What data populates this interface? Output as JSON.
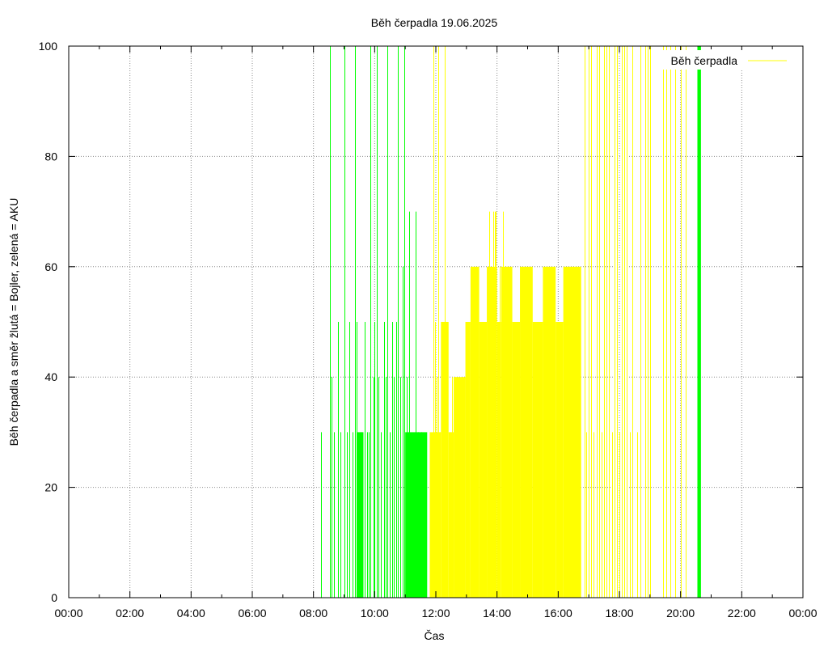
{
  "chart_data": {
    "type": "bar",
    "title": "Běh čerpadla 19.06.2025",
    "xlabel": "Čas",
    "ylabel": "Běh čerpadla a směr žlutá = Bojler, zelená = AKU",
    "ylim": [
      0,
      100
    ],
    "xlim": [
      "00:00",
      "24:00"
    ],
    "x_ticks": [
      "00:00",
      "02:00",
      "04:00",
      "06:00",
      "08:00",
      "10:00",
      "12:00",
      "14:00",
      "16:00",
      "18:00",
      "20:00",
      "22:00",
      "00:00"
    ],
    "y_ticks": [
      0,
      20,
      40,
      60,
      80,
      100
    ],
    "grid": true,
    "legend": {
      "position": "top-right",
      "entries": [
        {
          "label": "Běh čerpadla",
          "color": "#ffff00"
        }
      ]
    },
    "colors": {
      "aku": "#00ff00",
      "bojler": "#ffff00"
    },
    "series": [
      {
        "direction": "AKU",
        "color": "#00ff00",
        "spikes": [
          [
            "08:15",
            30
          ],
          [
            "08:32",
            100
          ],
          [
            "08:35",
            40
          ],
          [
            "08:40",
            30
          ],
          [
            "08:48",
            50
          ],
          [
            "08:53",
            30
          ],
          [
            "09:00",
            100
          ],
          [
            "09:05",
            30
          ],
          [
            "09:10",
            50
          ],
          [
            "09:17",
            30
          ],
          [
            "09:22",
            100
          ],
          [
            "09:25",
            50
          ],
          [
            "09:32",
            30
          ],
          [
            "09:40",
            50
          ],
          [
            "09:45",
            30
          ],
          [
            "09:48",
            30
          ],
          [
            "09:52",
            100
          ],
          [
            "09:58",
            40
          ],
          [
            "10:00",
            50
          ],
          [
            "10:05",
            100
          ],
          [
            "10:08",
            40
          ],
          [
            "10:12",
            30
          ],
          [
            "10:18",
            50
          ],
          [
            "10:22",
            40
          ],
          [
            "10:25",
            100
          ],
          [
            "10:30",
            30
          ],
          [
            "10:35",
            50
          ],
          [
            "10:38",
            40
          ],
          [
            "10:42",
            50
          ],
          [
            "10:46",
            100
          ],
          [
            "10:50",
            40
          ],
          [
            "10:55",
            60
          ],
          [
            "10:58",
            100
          ],
          [
            "11:03",
            40
          ],
          [
            "11:08",
            70
          ],
          [
            "11:20",
            70
          ],
          [
            "11:25",
            30
          ],
          [
            "11:32",
            30
          ]
        ],
        "blocks": [
          [
            "09:25",
            "09:38",
            30
          ],
          [
            "11:00",
            "11:43",
            30
          ],
          [
            "20:33",
            "20:40",
            100
          ]
        ]
      },
      {
        "direction": "Bojler",
        "color": "#ffff00",
        "spikes": [
          [
            "11:55",
            100
          ],
          [
            "11:58",
            50
          ],
          [
            "12:02",
            40
          ],
          [
            "12:05",
            100
          ],
          [
            "12:08",
            30
          ],
          [
            "12:12",
            50
          ],
          [
            "12:15",
            30
          ],
          [
            "12:18",
            100
          ],
          [
            "12:22",
            50
          ],
          [
            "12:28",
            30
          ],
          [
            "12:32",
            40
          ],
          [
            "12:38",
            40
          ],
          [
            "13:45",
            70
          ],
          [
            "13:48",
            50
          ],
          [
            "13:52",
            70
          ],
          [
            "13:55",
            70
          ],
          [
            "13:58",
            70
          ],
          [
            "14:02",
            50
          ],
          [
            "14:05",
            60
          ],
          [
            "14:08",
            50
          ],
          [
            "14:12",
            70
          ],
          [
            "16:52",
            100
          ],
          [
            "16:55",
            30
          ],
          [
            "17:00",
            100
          ],
          [
            "17:05",
            100
          ],
          [
            "17:10",
            30
          ],
          [
            "17:15",
            100
          ],
          [
            "17:20",
            100
          ],
          [
            "17:25",
            30
          ],
          [
            "17:30",
            100
          ],
          [
            "17:35",
            100
          ],
          [
            "17:40",
            100
          ],
          [
            "17:45",
            30
          ],
          [
            "17:50",
            100
          ],
          [
            "17:55",
            100
          ],
          [
            "18:00",
            30
          ],
          [
            "18:05",
            100
          ],
          [
            "18:10",
            100
          ],
          [
            "18:15",
            100
          ],
          [
            "18:20",
            30
          ],
          [
            "18:25",
            100
          ],
          [
            "18:35",
            30
          ],
          [
            "18:42",
            100
          ],
          [
            "18:50",
            100
          ],
          [
            "18:55",
            100
          ],
          [
            "19:00",
            100
          ],
          [
            "19:25",
            100
          ],
          [
            "19:32",
            100
          ],
          [
            "19:40",
            100
          ],
          [
            "19:50",
            100
          ],
          [
            "20:00",
            100
          ],
          [
            "20:10",
            100
          ]
        ],
        "blocks": [
          [
            "11:48",
            "12:10",
            30
          ],
          [
            "12:10",
            "12:25",
            50
          ],
          [
            "12:25",
            "12:35",
            30
          ],
          [
            "12:35",
            "12:58",
            40
          ],
          [
            "12:58",
            "13:08",
            50
          ],
          [
            "13:08",
            "13:25",
            60
          ],
          [
            "13:25",
            "13:40",
            50
          ],
          [
            "13:40",
            "14:00",
            60
          ],
          [
            "14:00",
            "14:08",
            50
          ],
          [
            "14:08",
            "14:30",
            60
          ],
          [
            "14:30",
            "14:45",
            50
          ],
          [
            "14:45",
            "15:10",
            60
          ],
          [
            "15:10",
            "15:30",
            50
          ],
          [
            "15:30",
            "15:55",
            60
          ],
          [
            "15:55",
            "16:10",
            50
          ],
          [
            "16:10",
            "16:45",
            60
          ]
        ]
      }
    ]
  }
}
